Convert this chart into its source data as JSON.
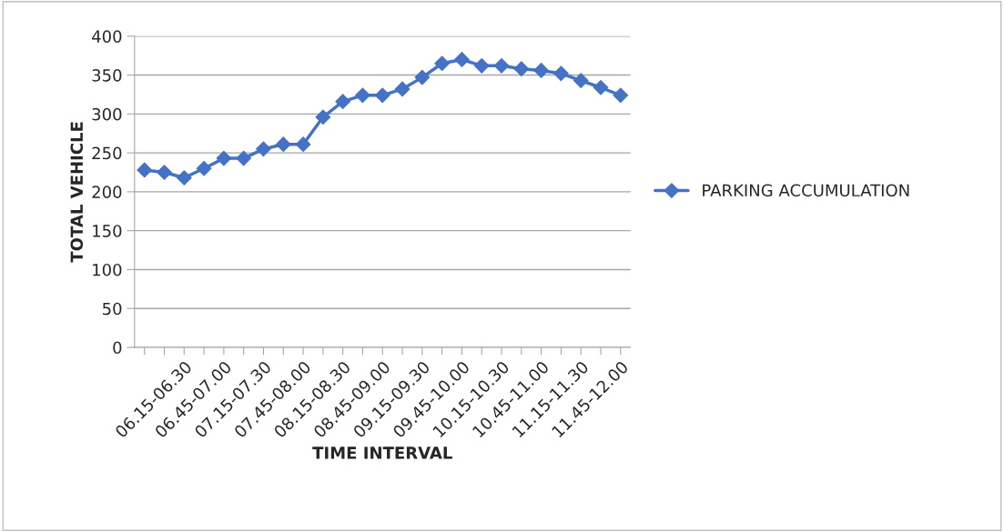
{
  "chart_data": {
    "type": "line",
    "xlabel": "TIME INTERVAL",
    "ylabel": "TOTAL VEHICLE",
    "categories": [
      null,
      null,
      "06.15-06.30",
      null,
      "06.45-07.00",
      null,
      "07.15-07.30",
      null,
      "07.45-08.00",
      null,
      "08.15-08.30",
      null,
      "08.45-09.00",
      null,
      "09.15-09.30",
      null,
      "09.45-10.00",
      null,
      "10.15-10.30",
      null,
      "10.45-11.00",
      null,
      "11.15-11.30",
      null,
      "11.45-12.00"
    ],
    "series": [
      {
        "name": "PARKING ACCUMULATION",
        "color": "#4472c4",
        "values": [
          228,
          225,
          218,
          230,
          243,
          243,
          255,
          261,
          261,
          296,
          316,
          324,
          324,
          332,
          347,
          365,
          370,
          362,
          362,
          358,
          356,
          352,
          343,
          334,
          324
        ]
      }
    ],
    "ylim": [
      0,
      400
    ],
    "yticks": [
      0,
      50,
      100,
      150,
      200,
      250,
      300,
      350,
      400
    ],
    "grid": "y",
    "legend": "right",
    "marker": "diamond",
    "line_style": "solid"
  }
}
